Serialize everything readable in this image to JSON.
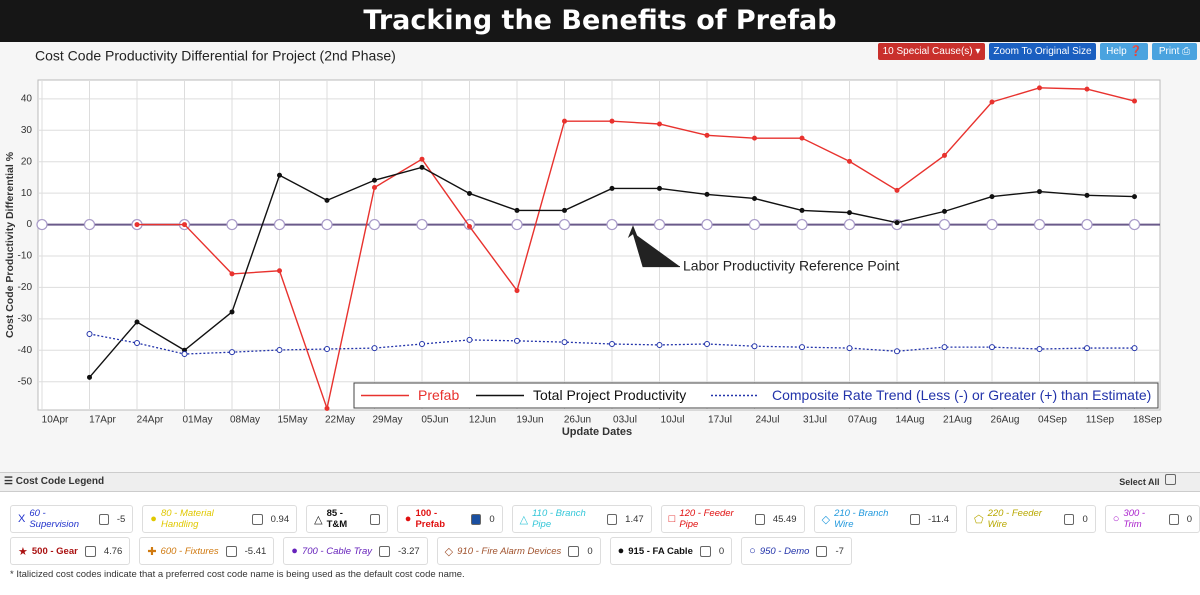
{
  "banner": {
    "title": "Tracking the Benefits of Prefab"
  },
  "toolbar": {
    "buttons": [
      "10 Special Cause(s) ▾",
      "Zoom To Original Size",
      "Help",
      "Print"
    ]
  },
  "chart_data": {
    "type": "line",
    "title": "Cost Code Productivity Differential for Project (2nd Phase)",
    "x_label": "Update Dates",
    "y_label": "Cost Code Productivity Differential %",
    "categories": [
      "10Apr",
      "17Apr",
      "24Apr",
      "01May",
      "08May",
      "15May",
      "22May",
      "29May",
      "05Jun",
      "12Jun",
      "19Jun",
      "26Jun",
      "03Jul",
      "10Jul",
      "17Jul",
      "24Jul",
      "31Jul",
      "07Aug",
      "14Aug",
      "21Aug",
      "26Aug",
      "04Sep",
      "11Sep",
      "18Sep"
    ],
    "series": [
      {
        "name": "Prefab",
        "color": "#e8322e",
        "dash": false,
        "values": [
          null,
          null,
          0,
          0,
          -15.7,
          -14.7,
          -58.5,
          11.8,
          20.8,
          -0.6,
          -21,
          32.9,
          32.9,
          32,
          28.4,
          27.5,
          27.5,
          20.1,
          10.9,
          22,
          39,
          43.5,
          43.1,
          39.3
        ]
      },
      {
        "name": "Total Project Productivity",
        "color": "#111111",
        "dash": false,
        "values": [
          null,
          -48.6,
          -31,
          -40,
          -27.8,
          15.7,
          7.7,
          14.1,
          18.2,
          9.9,
          4.5,
          4.5,
          11.5,
          11.5,
          9.6,
          8.3,
          4.5,
          3.8,
          0.6,
          4.2,
          8.9,
          10.5,
          9.3,
          8.9
        ]
      },
      {
        "name": "Composite Rate Trend (Less (-) or Greater (+) than Estimate)",
        "color": "#2233aa",
        "dash": true,
        "values": [
          null,
          -34.8,
          -37.7,
          -41.2,
          -40.6,
          -39.9,
          -39.6,
          -39.3,
          -38,
          -36.7,
          -37,
          -37.4,
          -38,
          -38.3,
          -38,
          -38.7,
          -39,
          -39.3,
          -40.3,
          -39,
          -39,
          -39.6,
          -39.3,
          -39.3
        ]
      }
    ],
    "ylim": [
      -59,
      46
    ],
    "yticks": [
      -50,
      -40,
      -30,
      -20,
      -10,
      0,
      10,
      20,
      30,
      40
    ],
    "grid": true,
    "legend": "bottom-right",
    "annotation": {
      "text": "Labor Productivity Reference Point",
      "value": 0
    }
  },
  "legend_panel": {
    "title": "Cost Code Legend",
    "select_all": "Select All",
    "items": [
      {
        "symbol": "X",
        "label": "60 - Supervision",
        "value": -5,
        "color": "#2233cc",
        "italic": true,
        "checked": false
      },
      {
        "symbol": "●",
        "label": "80 - Material Handling",
        "value": 0.94,
        "color": "#e0c800",
        "italic": true,
        "checked": false
      },
      {
        "symbol": "△",
        "label": "85 - T&M",
        "color": "#111111",
        "italic": false,
        "checked": false
      },
      {
        "symbol": "●",
        "label": "100 - Prefab",
        "value": 0,
        "color": "#e01010",
        "italic": false,
        "checked": true
      },
      {
        "symbol": "△",
        "label": "110 - Branch Pipe",
        "value": 1.47,
        "color": "#33c6d8",
        "italic": true,
        "checked": false
      },
      {
        "symbol": "□",
        "label": "120 - Feeder Pipe",
        "value": 45.49,
        "color": "#e01010",
        "italic": true,
        "checked": false
      },
      {
        "symbol": "◇",
        "label": "210 - Branch Wire",
        "value": -11.4,
        "color": "#2299dd",
        "italic": true,
        "checked": false
      },
      {
        "symbol": "⬠",
        "label": "220 - Feeder Wire",
        "value": 0,
        "color": "#b8a800",
        "italic": true,
        "checked": false
      },
      {
        "symbol": "○",
        "label": "300 - Trim",
        "value": 0,
        "color": "#aa22cc",
        "italic": true,
        "checked": false
      },
      {
        "symbol": "★",
        "label": "500 - Gear",
        "value": 4.76,
        "color": "#aa1111",
        "italic": false,
        "checked": false
      },
      {
        "symbol": "✚",
        "label": "600 - Fixtures",
        "value": -5.41,
        "color": "#d07a10",
        "italic": true,
        "checked": false
      },
      {
        "symbol": "●",
        "label": "700 - Cable Tray",
        "value": -3.27,
        "color": "#6622bb",
        "italic": true,
        "checked": false
      },
      {
        "symbol": "◇",
        "label": "910 - Fire Alarm Devices",
        "value": 0,
        "color": "#a0522d",
        "italic": true,
        "checked": false
      },
      {
        "symbol": "●",
        "label": "915 - FA Cable",
        "value": 0,
        "color": "#111111",
        "italic": false,
        "checked": false
      },
      {
        "symbol": "○",
        "label": "950 - Demo",
        "value": -7,
        "color": "#2233aa",
        "italic": true,
        "checked": false
      }
    ],
    "footnote": "* Italicized cost codes indicate that a preferred cost code name is being used as the default cost code name."
  }
}
